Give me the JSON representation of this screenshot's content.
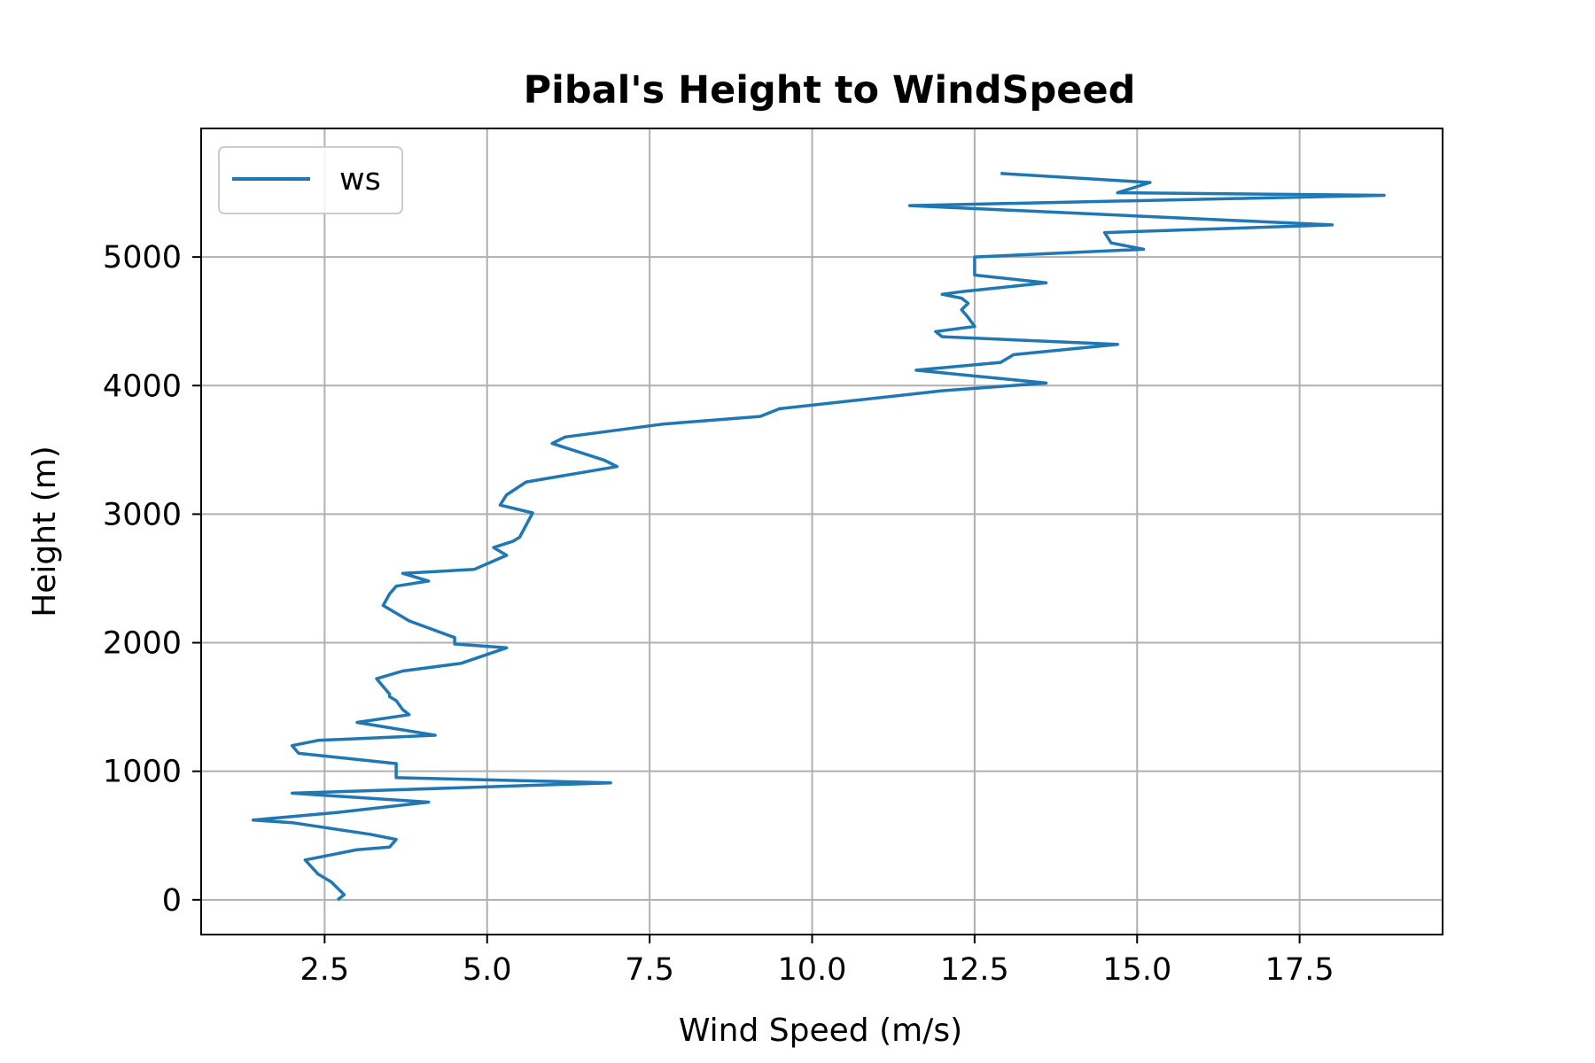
{
  "chart_data": {
    "type": "line",
    "title": "Pibal's Height to WindSpeed",
    "xlabel": "Wind Speed (m/s)",
    "ylabel": "Height (m)",
    "xlim": [
      0.6,
      19.7
    ],
    "ylim": [
      -270,
      6000
    ],
    "xticks": [
      2.5,
      5.0,
      7.5,
      10.0,
      12.5,
      15.0,
      17.5
    ],
    "xtick_labels": [
      "2.5",
      "5.0",
      "7.5",
      "10.0",
      "12.5",
      "15.0",
      "17.5"
    ],
    "yticks": [
      0,
      1000,
      2000,
      3000,
      4000,
      5000
    ],
    "ytick_labels": [
      "0",
      "1000",
      "2000",
      "3000",
      "4000",
      "5000"
    ],
    "grid": true,
    "legend": {
      "position": "top-left",
      "entries": [
        "ws"
      ]
    },
    "series": [
      {
        "name": "ws",
        "color": "#1f77b4",
        "x": [
          2.7,
          2.8,
          2.6,
          2.4,
          2.2,
          3.0,
          3.5,
          3.6,
          3.2,
          2.0,
          1.4,
          2.7,
          4.1,
          2.0,
          6.9,
          3.6,
          3.6,
          2.1,
          2.0,
          2.4,
          4.2,
          3.0,
          3.8,
          3.7,
          3.6,
          3.5,
          3.5,
          3.3,
          3.7,
          4.6,
          5.3,
          4.5,
          4.5,
          3.8,
          3.4,
          3.5,
          3.6,
          4.1,
          3.7,
          4.8,
          5.3,
          5.1,
          5.4,
          5.5,
          5.7,
          5.2,
          5.3,
          5.6,
          7.0,
          6.8,
          6.0,
          6.2,
          7.7,
          9.2,
          9.5,
          12.0,
          13.6,
          12.4,
          11.6,
          12.9,
          13.1,
          14.7,
          12.0,
          11.9,
          12.5,
          12.4,
          12.3,
          12.4,
          12.3,
          12.0,
          12.3,
          13.6,
          12.5,
          12.5,
          15.1,
          14.6,
          14.5,
          18.0,
          11.5,
          18.8,
          14.7,
          15.2,
          12.9
        ],
        "y": [
          0,
          40,
          140,
          200,
          310,
          390,
          410,
          470,
          510,
          600,
          620,
          680,
          760,
          830,
          910,
          950,
          1060,
          1140,
          1200,
          1240,
          1280,
          1380,
          1440,
          1480,
          1550,
          1580,
          1600,
          1720,
          1780,
          1840,
          1960,
          1990,
          2040,
          2170,
          2290,
          2380,
          2440,
          2480,
          2540,
          2570,
          2680,
          2740,
          2790,
          2820,
          3010,
          3070,
          3150,
          3250,
          3370,
          3420,
          3550,
          3600,
          3700,
          3760,
          3820,
          3960,
          4020,
          4080,
          4120,
          4180,
          4240,
          4320,
          4380,
          4420,
          4460,
          4530,
          4590,
          4640,
          4680,
          4710,
          4730,
          4800,
          4860,
          5000,
          5060,
          5110,
          5190,
          5250,
          5400,
          5480,
          5500,
          5580,
          5650
        ]
      }
    ]
  }
}
